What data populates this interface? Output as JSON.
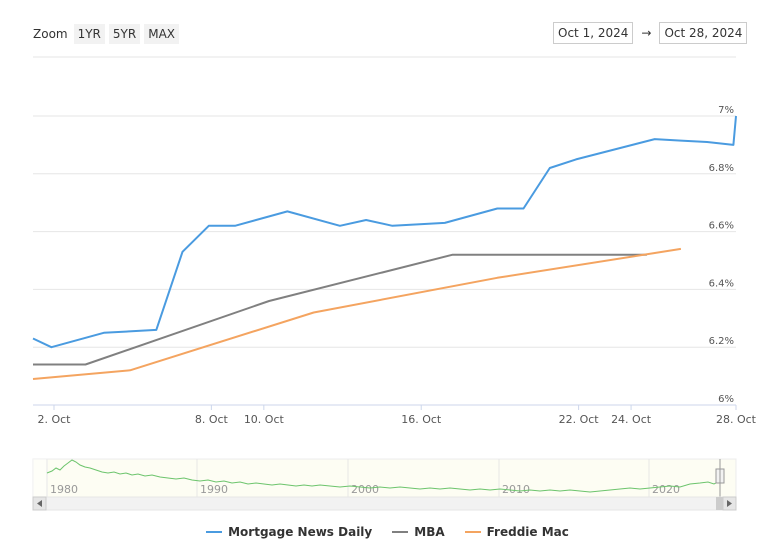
{
  "zoom": {
    "label": "Zoom",
    "buttons": [
      "1YR",
      "5YR",
      "MAX"
    ]
  },
  "range": {
    "from": "Oct 1, 2024",
    "arrow": "→",
    "to": "Oct 28, 2024"
  },
  "colors": {
    "mnd": "#4a9be0",
    "mba": "#808080",
    "freddie": "#f4a460",
    "navigator_line": "#6cc46c",
    "grid": "#e6e6e6"
  },
  "chart_data": {
    "type": "line",
    "x_unit": "day of Oct 2024",
    "x_range": [
      1.2,
      28
    ],
    "ylim": [
      6.0,
      7.0
    ],
    "y_ticks": [
      {
        "value": 6.0,
        "label": "6%"
      },
      {
        "value": 6.2,
        "label": "6.2%"
      },
      {
        "value": 6.4,
        "label": "6.4%"
      },
      {
        "value": 6.6,
        "label": "6.6%"
      },
      {
        "value": 6.8,
        "label": "6.8%"
      },
      {
        "value": 7.0,
        "label": "7%"
      }
    ],
    "x_ticks": [
      {
        "value": 2,
        "label": "2. Oct"
      },
      {
        "value": 8,
        "label": "8. Oct"
      },
      {
        "value": 10,
        "label": "10. Oct"
      },
      {
        "value": 16,
        "label": "16. Oct"
      },
      {
        "value": 22,
        "label": "22. Oct"
      },
      {
        "value": 24,
        "label": "24. Oct"
      },
      {
        "value": 28,
        "label": "28. Oct"
      }
    ],
    "grid": true,
    "legend": "bottom",
    "series": [
      {
        "name": "Mortgage News Daily",
        "color_key": "mnd",
        "points": [
          [
            1.2,
            6.23
          ],
          [
            1.9,
            6.2
          ],
          [
            3.9,
            6.25
          ],
          [
            5.9,
            6.26
          ],
          [
            6.9,
            6.53
          ],
          [
            7.9,
            6.62
          ],
          [
            8.9,
            6.62
          ],
          [
            10.9,
            6.67
          ],
          [
            12.9,
            6.62
          ],
          [
            13.9,
            6.64
          ],
          [
            14.9,
            6.62
          ],
          [
            16.9,
            6.63
          ],
          [
            18.9,
            6.68
          ],
          [
            19.9,
            6.68
          ],
          [
            20.9,
            6.82
          ],
          [
            21.9,
            6.85
          ],
          [
            24.9,
            6.92
          ],
          [
            25.9,
            6.915
          ],
          [
            26.9,
            6.91
          ],
          [
            27.9,
            6.9
          ],
          [
            28,
            7.0
          ]
        ]
      },
      {
        "name": "MBA",
        "color_key": "mba",
        "points": [
          [
            1.2,
            6.14
          ],
          [
            3.2,
            6.14
          ],
          [
            10.2,
            6.36
          ],
          [
            17.2,
            6.52
          ],
          [
            24.2,
            6.52
          ],
          [
            24.6,
            6.52
          ]
        ]
      },
      {
        "name": "Freddie Mac",
        "color_key": "freddie",
        "points": [
          [
            1.2,
            6.09
          ],
          [
            4.9,
            6.12
          ],
          [
            11.9,
            6.32
          ],
          [
            18.9,
            6.44
          ],
          [
            25.9,
            6.54
          ]
        ]
      }
    ],
    "navigator": {
      "x_labels": [
        "1980",
        "1990",
        "2000",
        "2010",
        "2020"
      ]
    }
  }
}
